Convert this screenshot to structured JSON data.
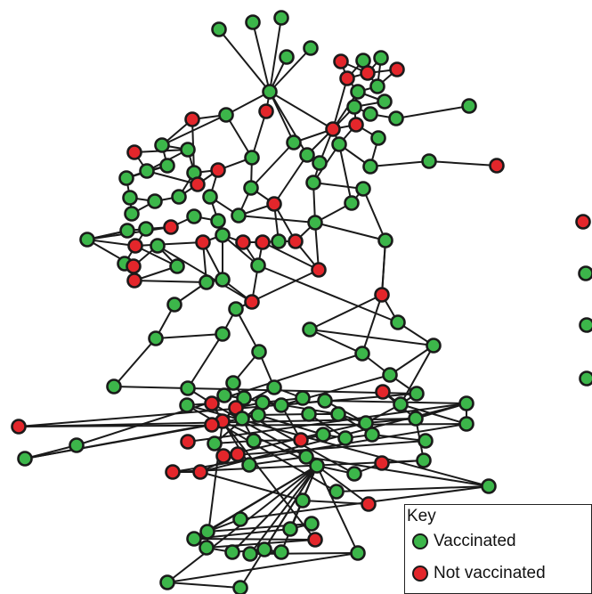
{
  "legend": {
    "title": "Key",
    "items": [
      {
        "label": "Vaccinated",
        "color": "#3cb64a"
      },
      {
        "label": "Not vaccinated",
        "color": "#e3262b"
      }
    ]
  },
  "colors": {
    "vaccinated": "#3cb64a",
    "not_vaccinated": "#e3262b",
    "edge": "#1a1a1a"
  }
}
